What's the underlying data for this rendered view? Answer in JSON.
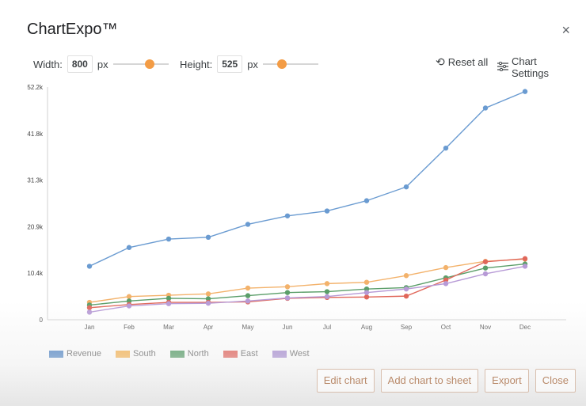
{
  "app": {
    "title": "ChartExpo™",
    "close_glyph": "×"
  },
  "toolbar": {
    "width_label": "Width:",
    "width_value": "800",
    "width_unit": "px",
    "height_label": "Height:",
    "height_value": "525",
    "height_unit": "px",
    "reset_label": "Reset all",
    "settings_label": "Chart Settings",
    "slider_color": "#f39c45"
  },
  "chart_data": {
    "type": "line",
    "categories": [
      "Jan",
      "Feb",
      "Mar",
      "Apr",
      "May",
      "Jun",
      "Jul",
      "Aug",
      "Sep",
      "Oct",
      "Nov",
      "Dec"
    ],
    "yticks": [
      "0",
      "10.4k",
      "20.9k",
      "31.3k",
      "41.8k",
      "52.2k"
    ],
    "ylim": [
      0,
      52200
    ],
    "grid": false,
    "legend_position": "bottom-left",
    "series": [
      {
        "name": "Revenue",
        "color": "#6a9bd1",
        "legend_color": "#1f63b5",
        "values": [
          12000,
          16200,
          18100,
          18500,
          21400,
          23300,
          24400,
          26700,
          29800,
          38500,
          47500,
          51200
        ]
      },
      {
        "name": "South",
        "color": "#f3b26b",
        "legend_color": "#f59b1b",
        "values": [
          3900,
          5200,
          5500,
          5800,
          7100,
          7400,
          8100,
          8400,
          9900,
          11700,
          13100,
          13600
        ]
      },
      {
        "name": "North",
        "color": "#5b9e69",
        "legend_color": "#1e7b34",
        "values": [
          3300,
          4200,
          4800,
          4700,
          5400,
          6100,
          6300,
          6900,
          7200,
          9400,
          11600,
          12500
        ]
      },
      {
        "name": "East",
        "color": "#e0675a",
        "legend_color": "#d93025",
        "values": [
          2700,
          3400,
          3900,
          3900,
          4000,
          4800,
          5000,
          5100,
          5300,
          8900,
          13000,
          13700
        ]
      },
      {
        "name": "West",
        "color": "#b79ad6",
        "legend_color": "#8e6cc4",
        "values": [
          1700,
          3100,
          3600,
          3700,
          4200,
          4900,
          5200,
          6100,
          6900,
          8100,
          10300,
          12000
        ]
      }
    ]
  },
  "footer": {
    "edit_label": "Edit chart",
    "add_label": "Add chart to sheet",
    "export_label": "Export",
    "close_label": "Close"
  }
}
